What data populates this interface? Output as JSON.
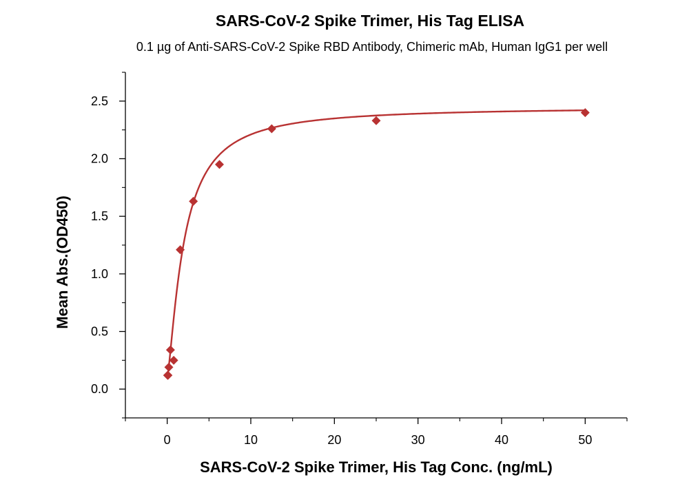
{
  "chart_data": {
    "type": "scatter",
    "title": "SARS-CoV-2 Spike Trimer, His Tag  ELISA",
    "subtitle": "0.1 µg of Anti-SARS-CoV-2 Spike RBD Antibody, Chimeric mAb, Human IgG1 per well",
    "xlabel": "SARS-CoV-2 Spike Trimer, His Tag  Conc. (ng/mL)",
    "ylabel": "Mean Abs.(OD450)",
    "xlim": [
      -5,
      55
    ],
    "ylim": [
      -0.25,
      2.75
    ],
    "xticks": [
      0,
      10,
      20,
      30,
      40,
      50
    ],
    "yticks": [
      0.0,
      0.5,
      1.0,
      1.5,
      2.0,
      2.5
    ],
    "xtick_labels": [
      "0",
      "10",
      "20",
      "30",
      "40",
      "50"
    ],
    "ytick_labels": [
      "0.0",
      "0.5",
      "1.0",
      "1.5",
      "2.0",
      "2.5"
    ],
    "grid": false,
    "series": [
      {
        "marker": "diamond",
        "color": "#b83232",
        "x": [
          0.049,
          0.098,
          0.195,
          0.39,
          0.78,
          1.56,
          3.13,
          6.25,
          12.5,
          25,
          50
        ],
        "y": [
          0.12,
          0.12,
          0.19,
          0.34,
          0.25,
          1.21,
          1.63,
          1.95,
          2.26,
          2.33,
          2.4
        ]
      }
    ],
    "fit_curve": {
      "model": "4PL",
      "color": "#b83232",
      "bottom": 0.1,
      "top": 2.45,
      "ec50": 2.0,
      "hill": 1.35
    }
  }
}
